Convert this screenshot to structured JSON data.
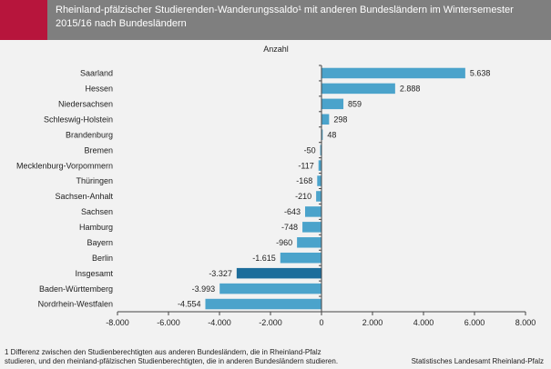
{
  "header": {
    "title": "Rheinland-pfälzischer Studierenden-Wanderungssaldo¹ mit anderen Bundesländern im Wintersemester 2015/16 nach Bundesländern"
  },
  "colors": {
    "accent": "#b7153c",
    "header_bg": "#7f7f7f",
    "bar": "#4ba3cb",
    "bar_highlight": "#1c6d9b",
    "background": "#f2f2f2"
  },
  "chart_data": {
    "type": "bar",
    "orientation": "horizontal",
    "unit_label": "Anzahl",
    "categories": [
      "Saarland",
      "Hessen",
      "Niedersachsen",
      "Schleswig-Holstein",
      "Brandenburg",
      "Bremen",
      "Mecklenburg-Vorpommern",
      "Thüringen",
      "Sachsen-Anhalt",
      "Sachsen",
      "Hamburg",
      "Bayern",
      "Berlin",
      "Insgesamt",
      "Baden-Württemberg",
      "Nordrhein-Westfalen"
    ],
    "values": [
      5638,
      2888,
      859,
      298,
      48,
      -50,
      -117,
      -168,
      -210,
      -643,
      -748,
      -960,
      -1615,
      -3327,
      -3993,
      -4554
    ],
    "value_labels": [
      "5.638",
      "2.888",
      "859",
      "298",
      "48",
      "-50",
      "-117",
      "-168",
      "-210",
      "-643",
      "-748",
      "-960",
      "-1.615",
      "-3.327",
      "-3.993",
      "-4.554"
    ],
    "highlight": "Insgesamt",
    "xlim": [
      -8000,
      8000
    ],
    "xticks": [
      -8000,
      -6000,
      -4000,
      -2000,
      0,
      2000,
      4000,
      6000,
      8000
    ],
    "xtick_labels": [
      "-8.000",
      "-6.000",
      "-4.000",
      "-2.000",
      "0",
      "2.000",
      "4.000",
      "6.000",
      "8.000"
    ],
    "grid": false
  },
  "footnote": {
    "line1": "1 Differenz zwischen den Studienberechtigten aus anderen Bundesländern, die in Rheinland-Pfalz",
    "line2": "studieren, und den rheinland-pfälzischen Studienberechtigten, die in anderen Bundesländern studieren."
  },
  "source": "Statistisches Landesamt Rheinland-Pfalz"
}
